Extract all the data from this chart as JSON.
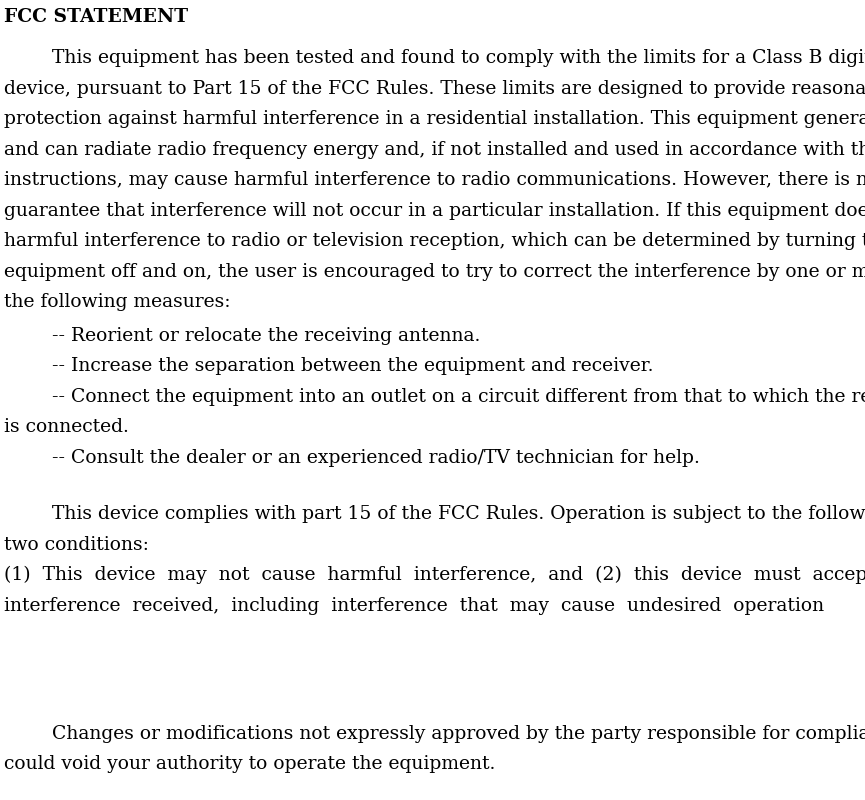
{
  "bg_color": "#ffffff",
  "text_color": "#000000",
  "title": "FCC STATEMENT",
  "title_fontsize": 13.5,
  "body_fontsize": 13.5,
  "page_width": 8.65,
  "page_height": 8.0,
  "lines_para1": [
    "        This equipment has been tested and found to comply with the limits for a Class B digital",
    "device, pursuant to Part 15 of the FCC Rules. These limits are designed to provide reasonable",
    "protection against harmful interference in a residential installation. This equipment generates uses",
    "and can radiate radio frequency energy and, if not installed and used in accordance with the",
    "instructions, may cause harmful interference to radio communications. However, there is no",
    "guarantee that interference will not occur in a particular installation. If this equipment does cause",
    "harmful interference to radio or television reception, which can be determined by turning the",
    "equipment off and on, the user is encouraged to try to correct the interference by one or more of",
    "the following measures:"
  ],
  "bullets": [
    "        -- Reorient or relocate the receiving antenna.",
    "        -- Increase the separation between the equipment and receiver.",
    "        -- Connect the equipment into an outlet on a circuit different from that to which the receiver",
    "is connected.",
    "        -- Consult the dealer or an experienced radio/TV technician for help."
  ],
  "lines_para2": [
    "        This device complies with part 15 of the FCC Rules. Operation is subject to the following",
    "two conditions:"
  ],
  "lines_justified": [
    "(1)  This  device  may  not  cause  harmful  interference,  and  (2)  this  device  must  accept  any",
    "interference  received,  including  interference  that  may  cause  undesired  operation"
  ],
  "lines_para3": [
    "        Changes or modifications not expressly approved by the party responsible for compliance",
    "could void your authority to operate the equipment."
  ]
}
